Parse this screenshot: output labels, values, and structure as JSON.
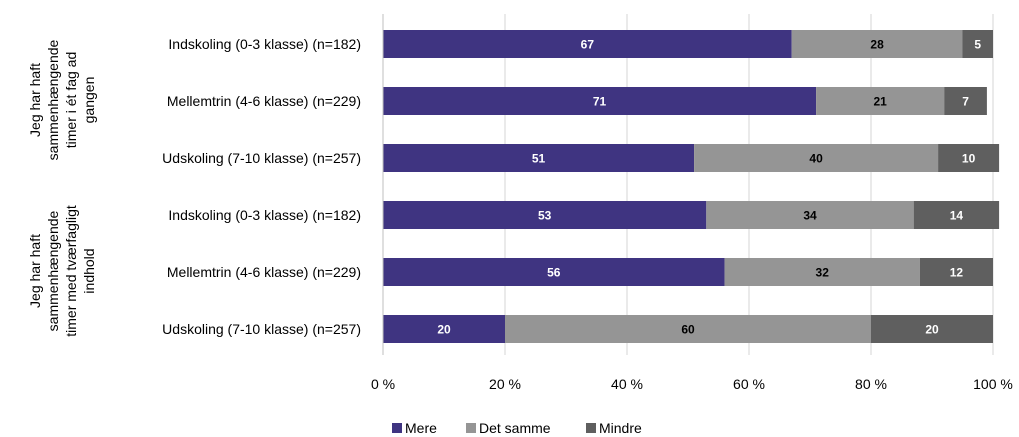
{
  "chart_data": {
    "type": "bar",
    "orientation": "horizontal",
    "stacked": true,
    "xlim": [
      0,
      100
    ],
    "x_ticks": [
      "0 %",
      "20 %",
      "40 %",
      "60 %",
      "80 %",
      "100 %"
    ],
    "grid": true,
    "legend_position": "bottom",
    "groups": [
      {
        "label": "Jeg har haft sammenhængende timer i ét fag ad gangen",
        "lines": [
          "Jeg har haft",
          "sammenhængende",
          "timer i ét fag ad",
          "gangen"
        ]
      },
      {
        "label": "Jeg har haft sammenhængende timer med tværfagligt indhold",
        "lines": [
          "Jeg har haft",
          "sammenhængende",
          "timer med tværfagligt",
          "indhold"
        ]
      }
    ],
    "categories": [
      "Indskoling (0-3 klasse) (n=182)",
      "Mellemtrin (4-6 klasse) (n=229)",
      "Udskoling (7-10 klasse) (n=257)",
      "Indskoling (0-3 klasse) (n=182)",
      "Mellemtrin (4-6 klasse) (n=229)",
      "Udskoling (7-10 klasse) (n=257)"
    ],
    "series": [
      {
        "name": "Mere",
        "color": "#3f3481",
        "label_color": "#ffffff",
        "values": [
          67,
          71,
          51,
          53,
          56,
          20
        ]
      },
      {
        "name": "Det samme",
        "color": "#959595",
        "label_color": "#000000",
        "values": [
          28,
          21,
          40,
          34,
          32,
          60
        ]
      },
      {
        "name": "Mindre",
        "color": "#5f5f5f",
        "label_color": "#ffffff",
        "values": [
          5,
          7,
          10,
          14,
          12,
          20
        ]
      }
    ]
  }
}
